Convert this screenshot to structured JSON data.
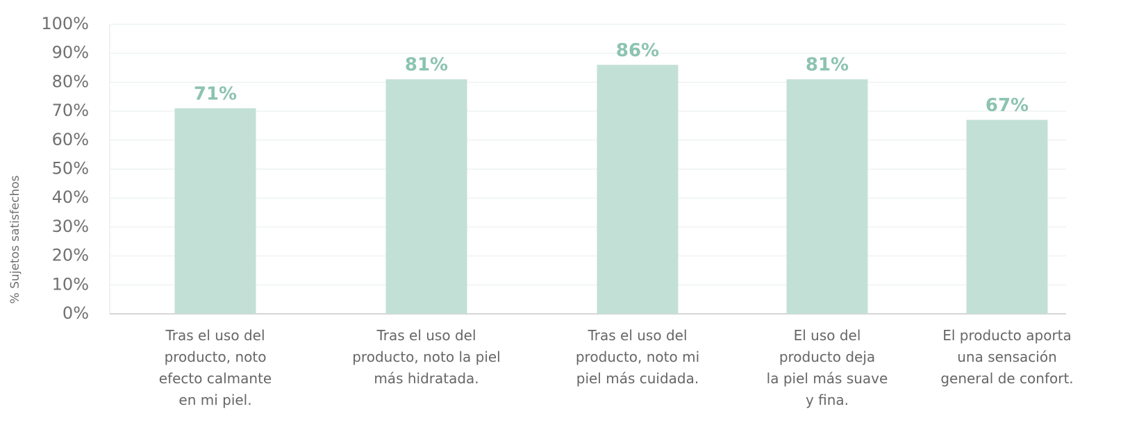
{
  "chart_data": {
    "type": "bar",
    "y_label": "% Sujetos satisfechos",
    "categories": [
      "Tras el uso del\nproducto, noto\nefecto calmante\nen mi piel.",
      "Tras el uso del\nproducto, noto la piel\nmás hidratada.",
      "Tras el uso del\nproducto, noto mi\npiel más cuidada.",
      "El uso del\nproducto deja\nla piel más suave\ny fina.",
      "El producto aporta\nuna sensación\ngeneral de confort."
    ],
    "values": [
      71,
      81,
      86,
      81,
      67
    ],
    "value_labels": [
      "71%",
      "81%",
      "86%",
      "81%",
      "67%"
    ],
    "color": "#c3e0d7",
    "label_color": "#8cc3b1",
    "ylim": [
      0,
      100
    ],
    "yticks": [
      {
        "value": 0,
        "label": "0%"
      },
      {
        "value": 10,
        "label": "10%"
      },
      {
        "value": 20,
        "label": "20%"
      },
      {
        "value": 30,
        "label": "30%"
      },
      {
        "value": 40,
        "label": "40%"
      },
      {
        "value": 50,
        "label": "50%"
      },
      {
        "value": 60,
        "label": "60%"
      },
      {
        "value": 70,
        "label": "70%"
      },
      {
        "value": 80,
        "label": "80%"
      },
      {
        "value": 90,
        "label": "90%"
      },
      {
        "value": 100,
        "label": "100%"
      }
    ],
    "grid": true
  }
}
